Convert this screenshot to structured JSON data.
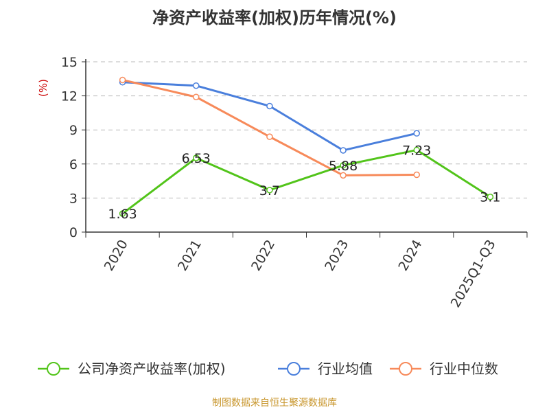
{
  "chart_data": {
    "type": "line",
    "title": "净资产收益率(加权)历年情况(%)",
    "ylabel": "(%)",
    "categories": [
      "2020",
      "2021",
      "2022",
      "2023",
      "2024",
      "2025Q1-Q3"
    ],
    "ylim": [
      0,
      15
    ],
    "yticks": [
      0,
      3,
      6,
      9,
      12,
      15
    ],
    "grid": true,
    "legend_position": "bottom",
    "series": [
      {
        "name": "公司净资产收益率(加权)",
        "color": "#52c41a",
        "values": [
          1.63,
          6.53,
          3.7,
          5.88,
          7.23,
          3.1
        ],
        "labels": [
          "1.63",
          "6.53",
          "3.7",
          "5.88",
          "7.23",
          "3.1"
        ]
      },
      {
        "name": "行业均值",
        "color": "#4a7fdc",
        "values": [
          13.2,
          12.9,
          11.1,
          7.2,
          8.7,
          null
        ]
      },
      {
        "name": "行业中位数",
        "color": "#f78a5a",
        "values": [
          13.4,
          11.9,
          8.4,
          5.0,
          5.05,
          null
        ]
      }
    ],
    "source": "制图数据来自恒生聚源数据库"
  }
}
